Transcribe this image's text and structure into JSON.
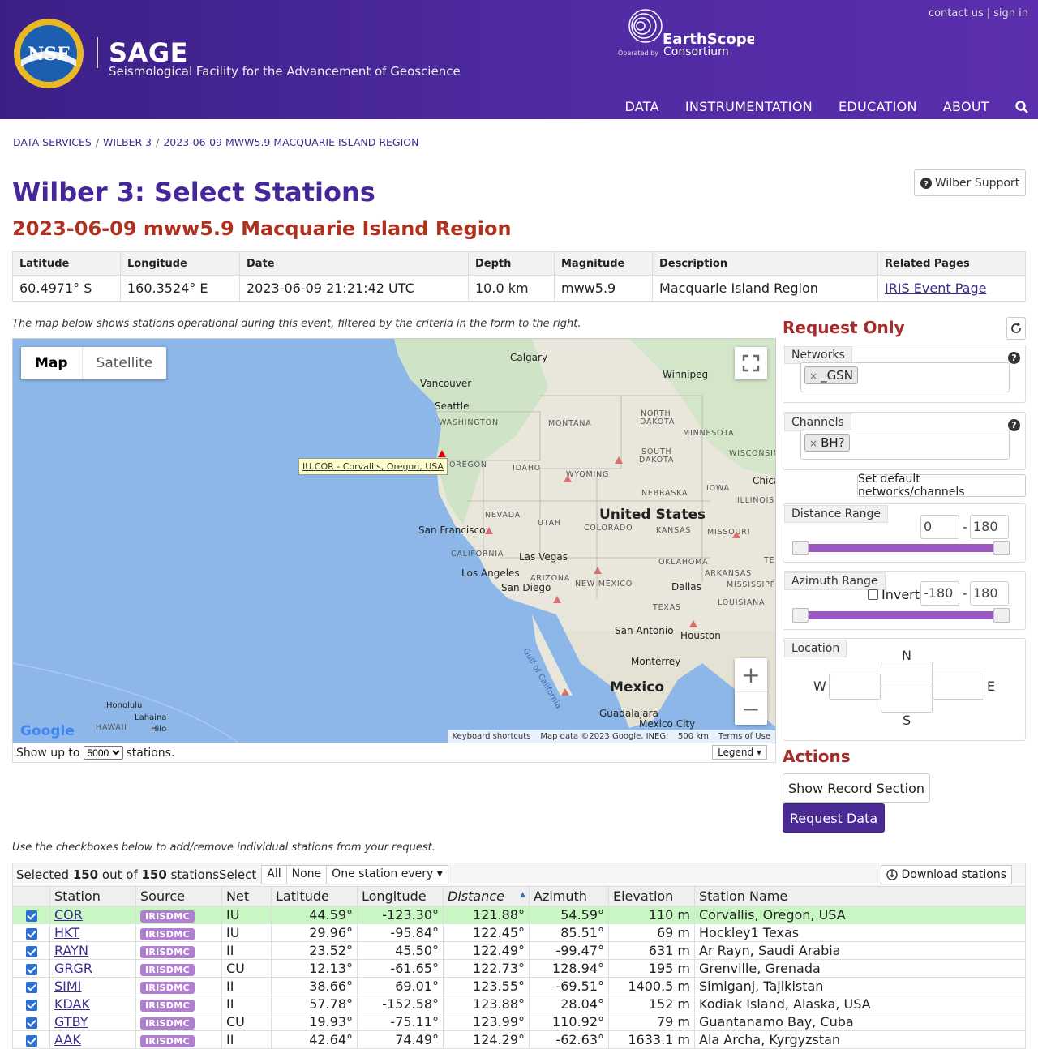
{
  "header": {
    "brand_title": "SAGE",
    "brand_subtitle": "Seismological Facility for the Advancement of Geoscience",
    "nsf_text": "NSF",
    "es_operated": "Operated by",
    "es_line1": "EarthScope",
    "es_line2": "Consortium",
    "top_links": [
      "contact us",
      "sign in"
    ],
    "nav": [
      "DATA",
      "INSTRUMENTATION",
      "EDUCATION",
      "ABOUT"
    ]
  },
  "breadcrumb": [
    "DATA SERVICES",
    "WILBER 3",
    "2023-06-09 MWW5.9 MACQUARIE ISLAND REGION"
  ],
  "page_title": "Wilber 3: Select Stations",
  "support_label": "Wilber Support",
  "event": {
    "title": "2023-06-09 mww5.9 Macquarie Island Region",
    "headers": [
      "Latitude",
      "Longitude",
      "Date",
      "Depth",
      "Magnitude",
      "Description",
      "Related Pages"
    ],
    "values": [
      "60.4971° S",
      "160.3524° E",
      "2023-06-09 21:21:42 UTC",
      "10.0 km",
      "mww5.9",
      "Macquarie Island Region",
      "IRIS Event Page"
    ]
  },
  "map_note": "The map below shows stations operational during this event, filtered by the criteria in the form to the right.",
  "map": {
    "type_buttons": [
      "Map",
      "Satellite"
    ],
    "tooltip": "IU.COR - Corvallis, Oregon, USA",
    "cities": {
      "calgary": "Calgary",
      "winnipeg": "Winnipeg",
      "vancouver": "Vancouver",
      "seattle": "Seattle",
      "sanfrancisco": "San Francisco",
      "lasvegas": "Las Vegas",
      "losangeles": "Los Angeles",
      "sandiego": "San Diego",
      "dallas": "Dallas",
      "sanantonio": "San Antonio",
      "houston": "Houston",
      "monterrey": "Monterrey",
      "guadalajara": "Guadalajara",
      "mexicocity": "Mexico City",
      "honolulu": "Honolulu",
      "lahaina": "Lahaina",
      "hilo": "Hilo",
      "chicago": "Chica"
    },
    "states": {
      "washington": "WASHINGTON",
      "oregon": "OREGON",
      "idaho": "IDAHO",
      "montana": "MONTANA",
      "wyoming": "WYOMING",
      "nevada": "NEVADA",
      "utah": "UTAH",
      "colorado": "COLORADO",
      "california": "CALIFORNIA",
      "arizona": "ARIZONA",
      "newmexico": "NEW MEXICO",
      "texas": "TEXAS",
      "nebraska": "NEBRASKA",
      "kansas": "KANSAS",
      "oklahoma": "OKLAHOMA",
      "iowa": "IOWA",
      "missouri": "MISSOURI",
      "illinois": "ILLINOIS",
      "arkansas": "ARKANSAS",
      "mississippi": "MISSISSIPPI",
      "louisiana": "LOUISIANA",
      "minnesota": "MINNESOTA",
      "wisconsin": "WISCONSIN",
      "northdakota1": "NORTH",
      "northdakota2": "DAKOTA",
      "southdakota1": "SOUTH",
      "southdakota2": "DAKOTA",
      "hawaii": "HAWAII",
      "tn": "TEN"
    },
    "countries": {
      "us": "United States",
      "mexico": "Mexico"
    },
    "gulf": "Gulf of California",
    "google": "Google",
    "attribution": [
      "Keyboard shortcuts",
      "Map data ©2023 Google, INEGI",
      "500 km",
      "Terms of Use"
    ]
  },
  "map_footer": {
    "prefix": "Show up to",
    "value": "5000",
    "suffix": "stations.",
    "legend": "Legend"
  },
  "request": {
    "title": "Request Only",
    "networks_label": "Networks",
    "networks_tag": "_GSN",
    "channels_label": "Channels",
    "channels_tag": "BH?",
    "default_btn": "Set default networks/channels",
    "distance_label": "Distance Range",
    "distance_min": "0",
    "distance_max": "180",
    "azimuth_label": "Azimuth Range",
    "invert_label": "Invert",
    "azimuth_min": "-180",
    "azimuth_max": "180",
    "location_label": "Location",
    "n": "N",
    "s": "S",
    "w": "W",
    "e": "E"
  },
  "actions": {
    "title": "Actions",
    "record_section": "Show Record Section",
    "request_data": "Request Data"
  },
  "table_note": "Use the checkboxes below to add/remove individual stations from your request.",
  "toolbar": {
    "selected_prefix": "Selected",
    "selected_count": "150",
    "middle": "out of",
    "total": "150",
    "suffix": "stations.",
    "select_label": "Select",
    "all": "All",
    "none": "None",
    "every": "One station every",
    "download": "Download stations"
  },
  "stations": {
    "headers": [
      "Station",
      "Source",
      "Net",
      "Latitude",
      "Longitude",
      "Distance",
      "Azimuth",
      "Elevation",
      "Station Name"
    ],
    "rows": [
      {
        "sta": "COR",
        "src": "IRISDMC",
        "net": "IU",
        "lat": "44.59°",
        "lon": "-123.30°",
        "dist": "121.88°",
        "az": "54.59°",
        "elev": "110 m",
        "name": "Corvallis, Oregon, USA"
      },
      {
        "sta": "HKT",
        "src": "IRISDMC",
        "net": "IU",
        "lat": "29.96°",
        "lon": "-95.84°",
        "dist": "122.45°",
        "az": "85.51°",
        "elev": "69 m",
        "name": "Hockley1 Texas"
      },
      {
        "sta": "RAYN",
        "src": "IRISDMC",
        "net": "II",
        "lat": "23.52°",
        "lon": "45.50°",
        "dist": "122.49°",
        "az": "-99.47°",
        "elev": "631 m",
        "name": "Ar Rayn, Saudi Arabia"
      },
      {
        "sta": "GRGR",
        "src": "IRISDMC",
        "net": "CU",
        "lat": "12.13°",
        "lon": "-61.65°",
        "dist": "122.73°",
        "az": "128.94°",
        "elev": "195 m",
        "name": "Grenville, Grenada"
      },
      {
        "sta": "SIMI",
        "src": "IRISDMC",
        "net": "II",
        "lat": "38.66°",
        "lon": "69.01°",
        "dist": "123.55°",
        "az": "-69.51°",
        "elev": "1400.5 m",
        "name": "Simiganj, Tajikistan"
      },
      {
        "sta": "KDAK",
        "src": "IRISDMC",
        "net": "II",
        "lat": "57.78°",
        "lon": "-152.58°",
        "dist": "123.88°",
        "az": "28.04°",
        "elev": "152 m",
        "name": "Kodiak Island, Alaska, USA"
      },
      {
        "sta": "GTBY",
        "src": "IRISDMC",
        "net": "CU",
        "lat": "19.93°",
        "lon": "-75.11°",
        "dist": "123.99°",
        "az": "110.92°",
        "elev": "79 m",
        "name": "Guantanamo Bay, Cuba"
      },
      {
        "sta": "AAK",
        "src": "IRISDMC",
        "net": "II",
        "lat": "42.64°",
        "lon": "74.49°",
        "dist": "124.29°",
        "az": "-62.63°",
        "elev": "1633.1 m",
        "name": "Ala Archa, Kyrgyzstan"
      }
    ]
  },
  "colors": {
    "header": "#4e2aa0",
    "title": "#46279a",
    "event": "#b0301e",
    "panel_title": "#a52a2a",
    "primary_btn": "#4b2a96",
    "highlight_row": "#c9f7c4",
    "slider": "#9b59c0"
  }
}
